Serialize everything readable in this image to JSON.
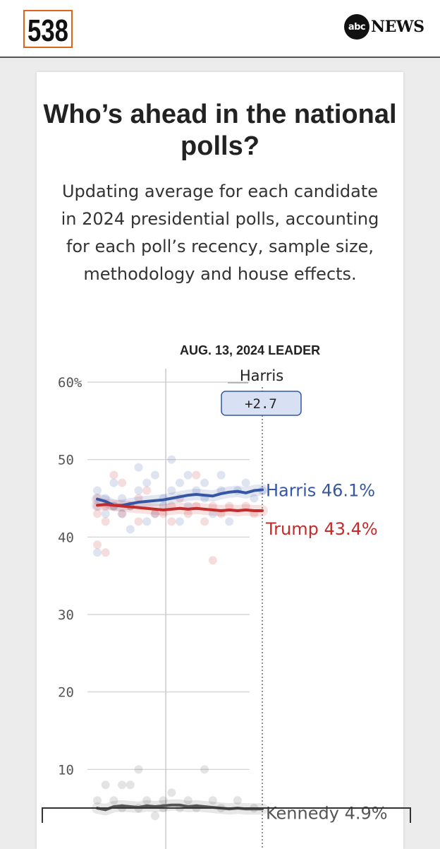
{
  "header": {
    "logo_538": "538",
    "abc_mark": "abc",
    "abc_news": "NEWS"
  },
  "card": {
    "title": "Who’s ahead in the national polls?",
    "subtitle": "Updating average for each candidate in 2024 presidential polls, accounting for each poll’s recency, sample size, methodology and house effects."
  },
  "colors": {
    "harris": "#3556a5",
    "trump": "#c42b2b",
    "kennedy": "#555555",
    "leader_box_fill": "#d7e1f3",
    "leader_box_stroke": "#3556a5"
  },
  "chart_data": {
    "type": "line",
    "leader_heading": "AUG. 13, 2024 LEADER",
    "leader_name": "Harris",
    "leader_margin": "+2.7",
    "ylim": [
      0,
      60
    ],
    "y_ticks": [
      {
        "value": 60,
        "label": "60%"
      },
      {
        "value": 50,
        "label": "50"
      },
      {
        "value": 40,
        "label": "40"
      },
      {
        "value": 30,
        "label": "30"
      },
      {
        "value": 20,
        "label": "20"
      },
      {
        "value": 10,
        "label": "10"
      }
    ],
    "x_range": [
      0,
      20
    ],
    "x_mid_marker": 8.3,
    "x_current": 20,
    "series": [
      {
        "name": "Harris",
        "end_label": "Harris 46.1%",
        "color": "#3556a5",
        "values": [
          44.9,
          44.6,
          44.1,
          44.1,
          44.3,
          44.5,
          44.6,
          44.7,
          44.8,
          45.0,
          45.2,
          45.4,
          45.5,
          45.4,
          45.3,
          45.6,
          45.8,
          45.9,
          45.7,
          46.0,
          46.1
        ],
        "polls": [
          [
            0,
            46
          ],
          [
            0,
            44
          ],
          [
            1,
            45
          ],
          [
            1,
            43
          ],
          [
            2,
            47
          ],
          [
            2,
            44
          ],
          [
            3,
            43
          ],
          [
            3,
            45
          ],
          [
            4,
            44
          ],
          [
            4,
            41
          ],
          [
            5,
            49
          ],
          [
            5,
            46
          ],
          [
            6,
            42
          ],
          [
            6,
            47
          ],
          [
            7,
            48
          ],
          [
            7,
            43
          ],
          [
            8,
            45
          ],
          [
            8,
            44
          ],
          [
            9,
            50
          ],
          [
            9,
            46
          ],
          [
            10,
            47
          ],
          [
            10,
            42
          ],
          [
            11,
            44
          ],
          [
            11,
            48
          ],
          [
            12,
            46
          ],
          [
            13,
            47
          ],
          [
            13,
            45
          ],
          [
            14,
            43
          ],
          [
            15,
            48
          ],
          [
            15,
            46
          ],
          [
            16,
            42
          ],
          [
            17,
            46
          ],
          [
            18,
            47
          ],
          [
            19,
            45
          ],
          [
            20,
            46
          ],
          [
            0,
            38
          ]
        ]
      },
      {
        "name": "Trump",
        "end_label": "Trump 43.4%",
        "color": "#c42b2b",
        "values": [
          44.1,
          44.2,
          44.1,
          44.0,
          43.9,
          43.8,
          43.7,
          43.6,
          43.5,
          43.6,
          43.7,
          43.6,
          43.7,
          43.6,
          43.5,
          43.4,
          43.5,
          43.4,
          43.5,
          43.4,
          43.4
        ],
        "polls": [
          [
            0,
            43
          ],
          [
            0,
            45
          ],
          [
            1,
            42
          ],
          [
            1,
            44
          ],
          [
            2,
            48
          ],
          [
            2,
            44
          ],
          [
            3,
            47
          ],
          [
            3,
            43
          ],
          [
            4,
            44
          ],
          [
            5,
            42
          ],
          [
            5,
            45
          ],
          [
            6,
            46
          ],
          [
            7,
            43
          ],
          [
            8,
            43
          ],
          [
            9,
            42
          ],
          [
            9,
            44
          ],
          [
            10,
            45
          ],
          [
            11,
            43
          ],
          [
            12,
            44
          ],
          [
            12,
            48
          ],
          [
            13,
            42
          ],
          [
            14,
            44
          ],
          [
            15,
            43
          ],
          [
            16,
            44
          ],
          [
            14,
            37
          ],
          [
            18,
            44
          ],
          [
            19,
            43
          ],
          [
            0,
            39
          ],
          [
            1,
            38
          ]
        ]
      },
      {
        "name": "Kennedy",
        "end_label": "Kennedy 4.9%",
        "color": "#555555",
        "values": [
          5.0,
          4.8,
          5.2,
          5.3,
          5.2,
          5.1,
          5.3,
          5.2,
          5.3,
          5.4,
          5.4,
          5.2,
          5.3,
          5.2,
          5.1,
          5.0,
          4.9,
          5.0,
          4.9,
          4.9,
          4.9
        ],
        "polls": [
          [
            0,
            6
          ],
          [
            1,
            8
          ],
          [
            2,
            6
          ],
          [
            3,
            8
          ],
          [
            3,
            5
          ],
          [
            4,
            8
          ],
          [
            5,
            5
          ],
          [
            5,
            10
          ],
          [
            6,
            6
          ],
          [
            7,
            4
          ],
          [
            8,
            6
          ],
          [
            8,
            5
          ],
          [
            9,
            7
          ],
          [
            10,
            5
          ],
          [
            11,
            6
          ],
          [
            12,
            5
          ],
          [
            13,
            10
          ],
          [
            14,
            6
          ],
          [
            15,
            5
          ],
          [
            17,
            6
          ],
          [
            19,
            5
          ]
        ]
      }
    ]
  }
}
